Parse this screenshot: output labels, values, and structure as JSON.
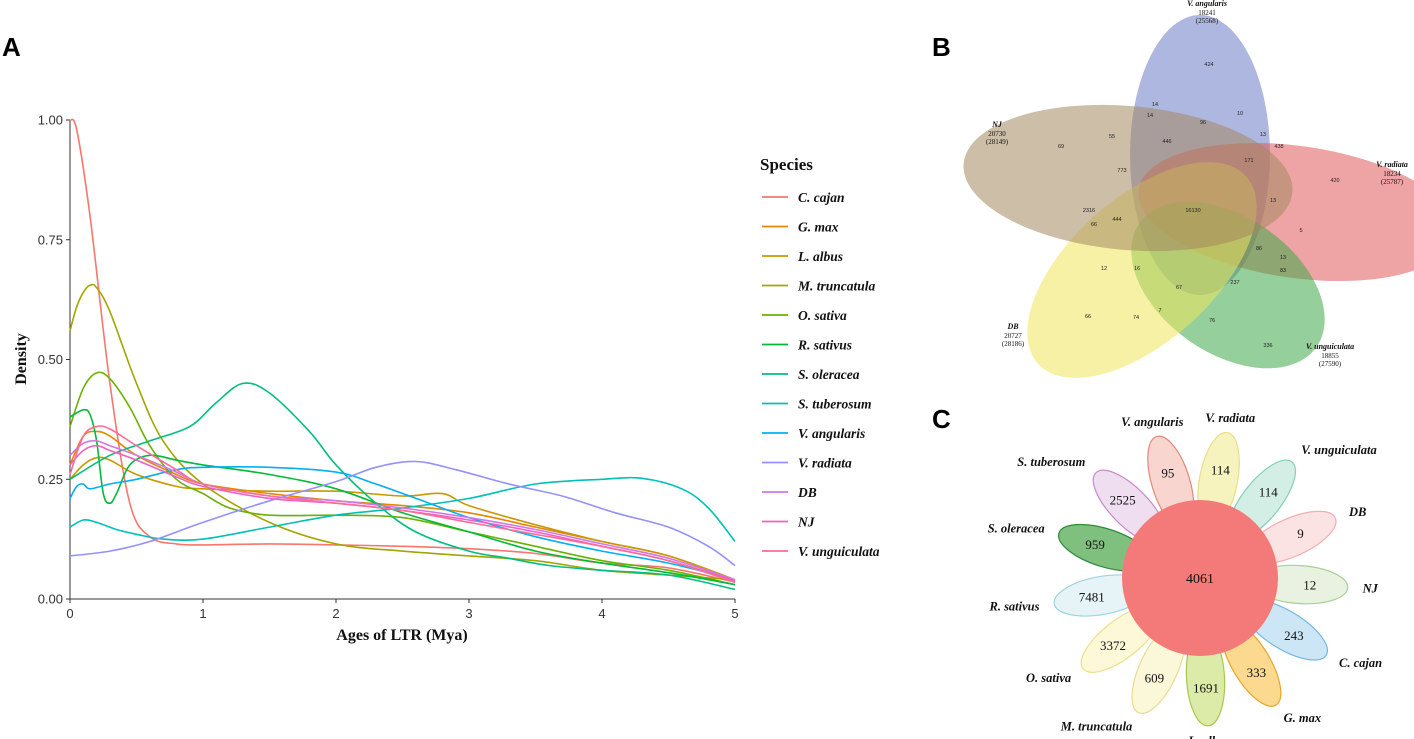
{
  "panels": {
    "a": "A",
    "b": "B",
    "c": "C"
  },
  "chart_data": [
    {
      "type": "line",
      "panel": "A",
      "xlabel": "Ages of LTR (Mya)",
      "ylabel": "Density",
      "xlim": [
        0,
        5
      ],
      "ylim": [
        0,
        1
      ],
      "xticks": [
        "0",
        "1",
        "2",
        "3",
        "4",
        "5"
      ],
      "yticks": [
        "0.00",
        "0.25",
        "0.50",
        "0.75",
        "1.00"
      ],
      "legend_title": "Species",
      "legend_position": "right",
      "series": [
        {
          "name": "C. cajan",
          "color": "#F8766D",
          "x": [
            0,
            0.05,
            0.15,
            0.3,
            0.45,
            0.6,
            0.8,
            1,
            1.5,
            2,
            2.5,
            3,
            3.5,
            4,
            4.5,
            5
          ],
          "y": [
            1.0,
            0.98,
            0.8,
            0.45,
            0.2,
            0.13,
            0.115,
            0.113,
            0.115,
            0.113,
            0.11,
            0.105,
            0.095,
            0.075,
            0.065,
            0.035
          ]
        },
        {
          "name": "G. max",
          "color": "#E58700",
          "x": [
            0,
            0.1,
            0.2,
            0.3,
            0.5,
            0.8,
            1,
            1.5,
            2,
            2.5,
            3,
            3.5,
            4,
            4.5,
            5
          ],
          "y": [
            0.28,
            0.34,
            0.35,
            0.34,
            0.3,
            0.26,
            0.24,
            0.22,
            0.205,
            0.195,
            0.18,
            0.15,
            0.12,
            0.09,
            0.04
          ]
        },
        {
          "name": "L. albus",
          "color": "#C99800",
          "x": [
            0,
            0.1,
            0.2,
            0.3,
            0.5,
            0.8,
            1,
            1.5,
            2,
            2.5,
            2.8,
            3,
            3.5,
            4,
            4.5,
            5
          ],
          "y": [
            0.25,
            0.28,
            0.295,
            0.29,
            0.26,
            0.235,
            0.23,
            0.225,
            0.225,
            0.215,
            0.22,
            0.195,
            0.155,
            0.12,
            0.09,
            0.04
          ]
        },
        {
          "name": "M. truncatula",
          "color": "#A3A500",
          "x": [
            0,
            0.05,
            0.1,
            0.15,
            0.2,
            0.3,
            0.5,
            0.7,
            1,
            1.5,
            2,
            2.5,
            3,
            3.5,
            4,
            4.5,
            5
          ],
          "y": [
            0.56,
            0.61,
            0.64,
            0.655,
            0.65,
            0.6,
            0.45,
            0.33,
            0.24,
            0.16,
            0.115,
            0.1,
            0.09,
            0.08,
            0.06,
            0.05,
            0.04
          ]
        },
        {
          "name": "O. sativa",
          "color": "#6BB100",
          "x": [
            0,
            0.1,
            0.2,
            0.3,
            0.45,
            0.6,
            0.8,
            1,
            1.2,
            1.5,
            2,
            2.5,
            3,
            3.5,
            4,
            4.5,
            5
          ],
          "y": [
            0.36,
            0.44,
            0.472,
            0.46,
            0.4,
            0.32,
            0.25,
            0.22,
            0.19,
            0.175,
            0.175,
            0.17,
            0.14,
            0.11,
            0.08,
            0.06,
            0.03
          ]
        },
        {
          "name": "R. sativus",
          "color": "#00BA38",
          "x": [
            0,
            0.1,
            0.15,
            0.2,
            0.25,
            0.3,
            0.35,
            0.45,
            0.6,
            0.8,
            1,
            1.5,
            2,
            2.5,
            3,
            3.5,
            4,
            4.5,
            5
          ],
          "y": [
            0.38,
            0.395,
            0.385,
            0.33,
            0.22,
            0.2,
            0.22,
            0.28,
            0.3,
            0.29,
            0.28,
            0.26,
            0.23,
            0.18,
            0.14,
            0.1,
            0.075,
            0.055,
            0.03
          ]
        },
        {
          "name": "S. oleracea",
          "color": "#00BF7D",
          "x": [
            0,
            0.3,
            0.6,
            0.9,
            1.1,
            1.3,
            1.5,
            1.8,
            2,
            2.3,
            2.6,
            3,
            3.3,
            3.6,
            4,
            4.5,
            5
          ],
          "y": [
            0.25,
            0.3,
            0.33,
            0.36,
            0.41,
            0.45,
            0.43,
            0.35,
            0.28,
            0.2,
            0.14,
            0.1,
            0.085,
            0.07,
            0.06,
            0.05,
            0.02
          ]
        },
        {
          "name": "S. tuberosum",
          "color": "#00C0B8",
          "x": [
            0,
            0.1,
            0.2,
            0.35,
            0.5,
            0.7,
            1,
            1.5,
            2,
            2.5,
            3,
            3.5,
            4,
            4.3,
            4.6,
            4.8,
            5
          ],
          "y": [
            0.15,
            0.165,
            0.16,
            0.145,
            0.135,
            0.125,
            0.125,
            0.15,
            0.175,
            0.19,
            0.21,
            0.24,
            0.25,
            0.252,
            0.23,
            0.19,
            0.12
          ]
        },
        {
          "name": "V. angularis",
          "color": "#00B0F6",
          "x": [
            0,
            0.05,
            0.1,
            0.15,
            0.3,
            0.5,
            0.8,
            1,
            1.5,
            2,
            2.3,
            2.7,
            3,
            3.5,
            4,
            4.5,
            5
          ],
          "y": [
            0.21,
            0.235,
            0.24,
            0.23,
            0.24,
            0.25,
            0.27,
            0.275,
            0.275,
            0.265,
            0.24,
            0.2,
            0.17,
            0.13,
            0.1,
            0.075,
            0.04
          ]
        },
        {
          "name": "V. radiata",
          "color": "#9590FF",
          "x": [
            0,
            0.3,
            0.6,
            1,
            1.5,
            2,
            2.3,
            2.6,
            2.9,
            3.3,
            3.7,
            4.1,
            4.5,
            4.8,
            5
          ],
          "y": [
            0.09,
            0.1,
            0.12,
            0.16,
            0.205,
            0.245,
            0.275,
            0.287,
            0.27,
            0.24,
            0.215,
            0.18,
            0.15,
            0.11,
            0.07
          ]
        },
        {
          "name": "DB",
          "color": "#D177E9",
          "x": [
            0,
            0.1,
            0.2,
            0.3,
            0.5,
            0.8,
            1,
            1.5,
            2,
            2.5,
            3,
            3.5,
            4,
            4.5,
            5
          ],
          "y": [
            0.3,
            0.325,
            0.33,
            0.32,
            0.3,
            0.265,
            0.24,
            0.215,
            0.205,
            0.19,
            0.17,
            0.145,
            0.115,
            0.085,
            0.04
          ]
        },
        {
          "name": "NJ",
          "color": "#F061C5",
          "x": [
            0,
            0.1,
            0.2,
            0.3,
            0.5,
            0.8,
            1,
            1.5,
            2,
            2.5,
            3,
            3.5,
            4,
            4.5,
            5
          ],
          "y": [
            0.28,
            0.31,
            0.32,
            0.31,
            0.29,
            0.255,
            0.235,
            0.21,
            0.2,
            0.185,
            0.165,
            0.14,
            0.11,
            0.08,
            0.038
          ]
        },
        {
          "name": "V. unguiculata",
          "color": "#FD6C98",
          "x": [
            0,
            0.1,
            0.2,
            0.3,
            0.5,
            0.8,
            1,
            1.5,
            2,
            2.5,
            3,
            3.5,
            4,
            4.5,
            5
          ],
          "y": [
            0.26,
            0.34,
            0.36,
            0.355,
            0.32,
            0.27,
            0.24,
            0.215,
            0.2,
            0.185,
            0.16,
            0.135,
            0.11,
            0.08,
            0.035
          ]
        }
      ]
    },
    {
      "type": "venn",
      "panel": "B",
      "sets": [
        {
          "name": "V. angularis",
          "count": "18241",
          "total": "(25568)",
          "color": "#6B7CC4"
        },
        {
          "name": "V. radiata",
          "count": "18234",
          "total": "(25787)",
          "color": "#E05A5A"
        },
        {
          "name": "V. unguiculata",
          "count": "18855",
          "total": "(27590)",
          "color": "#3EA848"
        },
        {
          "name": "DB",
          "count": "20727",
          "total": "(28186)",
          "color": "#F0E55C"
        },
        {
          "name": "NJ",
          "count": "20730",
          "total": "(28149)",
          "color": "#A48860"
        }
      ],
      "region_counts": [
        "424",
        "14",
        "14",
        "96",
        "10",
        "13",
        "438",
        "55",
        "446",
        "171",
        "69",
        "773",
        "420",
        "13",
        "2316",
        "16130",
        "5",
        "444",
        "66",
        "86",
        "13",
        "83",
        "12",
        "16",
        "237",
        "67",
        "66",
        "74",
        "7",
        "76",
        "336"
      ]
    },
    {
      "type": "flower",
      "panel": "C",
      "core": "4061",
      "core_color": "#F37A78",
      "petals": [
        {
          "name": "V. angularis",
          "value": "95",
          "fill": "#F8D6CF",
          "stroke": "#E28A7A"
        },
        {
          "name": "V. radiata",
          "value": "114",
          "fill": "#F7F3BE",
          "stroke": "#E8DF86"
        },
        {
          "name": "V. unguiculata",
          "value": "114",
          "fill": "#D2EEE5",
          "stroke": "#86CFB6"
        },
        {
          "name": "DB",
          "value": "9",
          "fill": "#FBE3E4",
          "stroke": "#F2AEB2"
        },
        {
          "name": "NJ",
          "value": "12",
          "fill": "#E9F2E0",
          "stroke": "#A8D093"
        },
        {
          "name": "C. cajan",
          "value": "243",
          "fill": "#CDE6F5",
          "stroke": "#72B7E3"
        },
        {
          "name": "G. max",
          "value": "333",
          "fill": "#FBD98F",
          "stroke": "#E8A52B"
        },
        {
          "name": "L. albus",
          "value": "1691",
          "fill": "#DCEBA8",
          "stroke": "#A6C84C"
        },
        {
          "name": "M. truncatula",
          "value": "609",
          "fill": "#FBF7D9",
          "stroke": "#E8DC94"
        },
        {
          "name": "O. sativa",
          "value": "3372",
          "fill": "#FDF8D8",
          "stroke": "#EDE08A"
        },
        {
          "name": "R. sativus",
          "value": "7481",
          "fill": "#E6F4F8",
          "stroke": "#9DD3E3"
        },
        {
          "name": "S. oleracea",
          "value": "959",
          "fill": "#7FC07F",
          "stroke": "#2F8A3A"
        },
        {
          "name": "S. tuberosum",
          "value": "2525",
          "fill": "#EFDDF0",
          "stroke": "#C98BCB"
        }
      ]
    }
  ]
}
